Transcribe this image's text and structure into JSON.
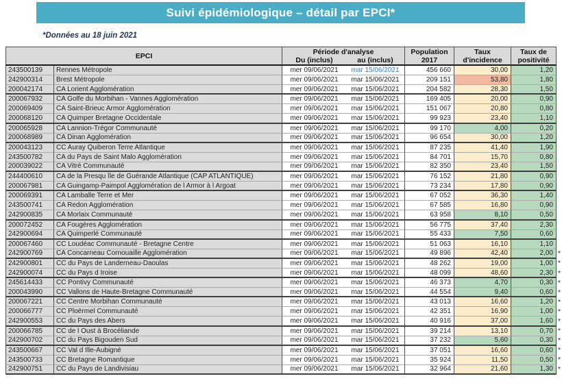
{
  "banner": {
    "title": "Suivi épidémiologique – détail par EPCI*",
    "bg_color": "#4BACC6"
  },
  "note": "*Données au 18 juin 2021",
  "colors": {
    "incidence_low_green": "#B7D9BE",
    "incidence_mid_cream": "#FBEDCB",
    "incidence_high_salmon": "#F1B99F",
    "header_grey": "#D9D9D9",
    "link_blue": "#3A7CC4"
  },
  "table": {
    "headers": {
      "epci": "EPCI",
      "periode": "Période d'analyse",
      "du": "Du (inclus)",
      "au": "au (inclus)",
      "population_l1": "Population",
      "population_l2": "2017",
      "incidence_l1": "Taux",
      "incidence_l2": "d'incidence",
      "positivite_l1": "Taux de",
      "positivite_l2": "positivité"
    },
    "rows": [
      {
        "code": "243500139",
        "name": "Rennes Métropole",
        "du": "mer 09/06/2021",
        "au": "mar 15/06/2021",
        "au_blue": true,
        "population": "456 660",
        "incidence": "30,00",
        "positivite": "1,20",
        "star": false
      },
      {
        "code": "242900314",
        "name": "Brest Métropole",
        "du": "mer 09/06/2021",
        "au": "mar 15/06/2021",
        "population": "209 151",
        "incidence": "53,80",
        "positivite": "1,80",
        "star": false
      },
      {
        "code": "200042174",
        "name": "CA Lorient Agglomération",
        "du": "mer 09/06/2021",
        "au": "mar 15/06/2021",
        "population": "204 582",
        "incidence": "28,30",
        "positivite": "1,50",
        "star": false
      },
      {
        "code": "200067932",
        "name": "CA Golfe du Morbihan - Vannes Agglomération",
        "du": "mer 09/06/2021",
        "au": "mar 15/06/2021",
        "population": "169 405",
        "incidence": "20,00",
        "positivite": "0,90",
        "star": false
      },
      {
        "code": "200069409",
        "name": "CA Saint-Brieuc Armor Agglomération",
        "du": "mer 09/06/2021",
        "au": "mar 15/06/2021",
        "population": "151 067",
        "incidence": "20,80",
        "positivite": "0,80",
        "star": false
      },
      {
        "code": "200068120",
        "name": "CA Quimper Bretagne Occidentale",
        "du": "mer 09/06/2021",
        "au": "mar 15/06/2021",
        "population": "99 923",
        "incidence": "23,40",
        "positivite": "1,10",
        "star": false
      },
      {
        "code": "200065928",
        "name": "CA Lannion-Trégor Communauté",
        "du": "mer 09/06/2021",
        "au": "mar 15/06/2021",
        "population": "99 170",
        "incidence": "4,00",
        "positivite": "0,20",
        "star": false
      },
      {
        "code": "200068989",
        "name": "CA Dinan Agglomération",
        "du": "mer 09/06/2021",
        "au": "mar 15/06/2021",
        "population": "96 654",
        "incidence": "30,00",
        "positivite": "1,20",
        "star": false
      },
      {
        "code": "200043123",
        "name": "CC Auray Quiberon Terre Atlantique",
        "du": "mer 09/06/2021",
        "au": "mar 15/06/2021",
        "population": "87 235",
        "incidence": "41,40",
        "positivite": "1,90",
        "star": false
      },
      {
        "code": "243500782",
        "name": "CA du Pays de Saint Malo Agglomération",
        "du": "mer 09/06/2021",
        "au": "mar 15/06/2021",
        "population": "84 701",
        "incidence": "15,70",
        "positivite": "0,80",
        "star": false
      },
      {
        "code": "200039022",
        "name": "CA Vitré Communauté",
        "du": "mer 09/06/2021",
        "au": "mar 15/06/2021",
        "population": "82 350",
        "incidence": "23,40",
        "positivite": "1,50",
        "star": false
      },
      {
        "code": "244400610",
        "name": "CA de la Presqu île de Guérande Atlantique (CAP ATLANTIQUE)",
        "du": "mer 09/06/2021",
        "au": "mar 15/06/2021",
        "population": "76 152",
        "incidence": "21,80",
        "positivite": "0,90",
        "star": false
      },
      {
        "code": "200067981",
        "name": "CA Guingamp-Paimpol Agglomération de l Armor à l Argoat",
        "du": "mer 09/06/2021",
        "au": "mar 15/06/2021",
        "population": "73 234",
        "incidence": "17,80",
        "positivite": "0,90",
        "star": false
      },
      {
        "code": "200069391",
        "name": "CA Lamballe Terre et Mer",
        "du": "mer 09/06/2021",
        "au": "mar 15/06/2021",
        "population": "67 052",
        "incidence": "36,30",
        "positivite": "1,40",
        "star": false
      },
      {
        "code": "243500741",
        "name": "CA Redon Agglomération",
        "du": "mer 09/06/2021",
        "au": "mar 15/06/2021",
        "population": "67 585",
        "incidence": "16,80",
        "positivite": "0,90",
        "star": false
      },
      {
        "code": "242900835",
        "name": "CA Morlaix Communauté",
        "du": "mer 09/06/2021",
        "au": "mar 15/06/2021",
        "population": "63 958",
        "incidence": "8,10",
        "positivite": "0,50",
        "star": false
      },
      {
        "code": "200072452",
        "name": "CA Fougères Agglomération",
        "du": "mer 09/06/2021",
        "au": "mar 15/06/2021",
        "population": "56 775",
        "incidence": "37,40",
        "positivite": "2,30",
        "star": false
      },
      {
        "code": "242900694",
        "name": "CA Quimperlé Communauté",
        "du": "mer 09/06/2021",
        "au": "mar 15/06/2021",
        "population": "55 433",
        "incidence": "7,50",
        "positivite": "0,60",
        "star": false
      },
      {
        "code": "200067460",
        "name": "CC Loudéac Communauté - Bretagne Centre",
        "du": "mer 09/06/2021",
        "au": "mar 15/06/2021",
        "population": "51 063",
        "incidence": "16,10",
        "positivite": "1,10",
        "star": false
      },
      {
        "code": "242900769",
        "name": "CA Concarneau Cornouaille Agglomération",
        "du": "mer 09/06/2021",
        "au": "mar 15/06/2021",
        "population": "49 896",
        "incidence": "42,40",
        "positivite": "2,00",
        "star": true
      },
      {
        "code": "242900801",
        "name": "CC du Pays de Landerneau-Daoulas",
        "du": "mer 09/06/2021",
        "au": "mar 15/06/2021",
        "population": "48 262",
        "incidence": "19,00",
        "positivite": "1,00",
        "star": true
      },
      {
        "code": "242900074",
        "name": "CC du Pays d Iroise",
        "du": "mer 09/06/2021",
        "au": "mar 15/06/2021",
        "population": "48 099",
        "incidence": "48,60",
        "positivite": "2,30",
        "star": true
      },
      {
        "code": "245614433",
        "name": "CC Pontivy Communauté",
        "du": "mer 09/06/2021",
        "au": "mar 15/06/2021",
        "population": "46 373",
        "incidence": "4,70",
        "positivite": "0,30",
        "star": true
      },
      {
        "code": "200043990",
        "name": "CC Vallons de Haute-Bretagne Communauté",
        "du": "mer 09/06/2021",
        "au": "mar 15/06/2021",
        "population": "44 554",
        "incidence": "9,40",
        "positivite": "0,60",
        "star": true
      },
      {
        "code": "200067221",
        "name": "CC Centre Morbihan Communauté",
        "du": "mer 09/06/2021",
        "au": "mar 15/06/2021",
        "population": "43 013",
        "incidence": "16,60",
        "positivite": "1,20",
        "star": true
      },
      {
        "code": "200066777",
        "name": "CC Ploërmel Communauté",
        "du": "mer 09/06/2021",
        "au": "mar 15/06/2021",
        "population": "42 351",
        "incidence": "16,90",
        "positivite": "1,00",
        "star": true
      },
      {
        "code": "242900553",
        "name": "CC du Pays des Abers",
        "du": "mer 09/06/2021",
        "au": "mar 15/06/2021",
        "population": "40 916",
        "incidence": "37,00",
        "positivite": "1,60",
        "star": true
      },
      {
        "code": "200066785",
        "name": "CC de l Oust à  Brocéliande",
        "du": "mer 09/06/2021",
        "au": "mar 15/06/2021",
        "population": "39 214",
        "incidence": "13,10",
        "positivite": "0,70",
        "star": true
      },
      {
        "code": "242900702",
        "name": "CC du Pays Bigouden Sud",
        "du": "mer 09/06/2021",
        "au": "mar 15/06/2021",
        "population": "37 232",
        "incidence": "5,60",
        "positivite": "0,30",
        "star": true
      },
      {
        "code": "243500667",
        "name": "CC Val d Ille-Aubigné",
        "du": "mer 09/06/2021",
        "au": "mar 15/06/2021",
        "population": "37 051",
        "incidence": "16,60",
        "positivite": "0,60",
        "star": true
      },
      {
        "code": "243500733",
        "name": "CC Bretagne Romantique",
        "du": "mer 09/06/2021",
        "au": "mar 15/06/2021",
        "population": "35 924",
        "incidence": "11,50",
        "positivite": "0,50",
        "star": true
      },
      {
        "code": "242900751",
        "name": "CC du Pays de Landivisiau",
        "du": "mer 09/06/2021",
        "au": "mar 15/06/2021",
        "population": "32 964",
        "incidence": "21,60",
        "positivite": "1,30",
        "star": true
      }
    ]
  }
}
